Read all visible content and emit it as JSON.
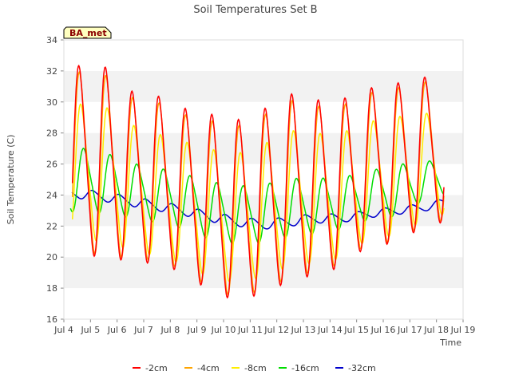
{
  "chart_data": {
    "type": "line",
    "title": "Soil Temperatures Set B",
    "xlabel": "Time",
    "ylabel": "Soil Temperature (C)",
    "badge": "BA_met",
    "xlim": [
      "Jul 4",
      "Jul 19"
    ],
    "ylim": [
      16,
      34
    ],
    "x_ticks": [
      "Jul 4",
      "Jul 5",
      "Jul 6",
      "Jul 7",
      "Jul 8",
      "Jul 9",
      "Jul 10",
      "Jul 11",
      "Jul 12",
      "Jul 13",
      "Jul 14",
      "Jul 15",
      "Jul 16",
      "Jul 17",
      "Jul 18",
      "Jul 19"
    ],
    "y_ticks": [
      16,
      18,
      20,
      22,
      24,
      26,
      28,
      30,
      32,
      34
    ],
    "grid": "horizontal bands",
    "legend_position": "bottom",
    "series": [
      {
        "name": "-2cm",
        "color": "#ff0000",
        "mean": [
          26.2,
          26.2,
          25.2,
          25.0,
          24.3,
          23.5,
          23.0,
          23.6,
          24.5,
          24.5,
          24.8,
          25.9,
          26.0,
          26.8,
          27.0
        ],
        "amp": [
          5.9,
          5.9,
          5.3,
          5.2,
          5.1,
          5.5,
          5.6,
          5.7,
          5.8,
          5.4,
          5.2,
          4.8,
          5.0,
          4.6,
          4.5
        ],
        "phase": 0.6,
        "start": 4.32,
        "end": 18.28
      },
      {
        "name": "-4cm",
        "color": "#ffa500",
        "mean": [
          26.1,
          26.0,
          25.1,
          24.9,
          24.2,
          23.4,
          22.9,
          23.5,
          24.4,
          24.4,
          24.7,
          25.8,
          25.9,
          26.7,
          26.9
        ],
        "amp": [
          5.6,
          5.6,
          5.0,
          4.9,
          4.8,
          5.2,
          5.3,
          5.4,
          5.5,
          5.1,
          4.9,
          4.6,
          4.8,
          4.4,
          4.3
        ],
        "phase": 0.62,
        "start": 4.32,
        "end": 18.28
      },
      {
        "name": "-8cm",
        "color": "#ffee00",
        "mean": [
          25.5,
          25.4,
          24.5,
          24.0,
          23.5,
          22.8,
          22.5,
          23.0,
          23.8,
          23.8,
          24.0,
          25.0,
          25.2,
          25.8,
          26.2
        ],
        "amp": [
          4.2,
          4.2,
          3.9,
          3.8,
          3.8,
          4.0,
          4.0,
          4.1,
          4.2,
          4.0,
          3.9,
          3.6,
          3.7,
          3.3,
          3.2
        ],
        "phase": 0.67,
        "start": 4.32,
        "end": 18.28
      },
      {
        "name": "-16cm",
        "color": "#00dd00",
        "mean": [
          25.0,
          24.8,
          24.3,
          24.0,
          23.6,
          23.0,
          22.7,
          22.8,
          23.2,
          23.3,
          23.5,
          24.0,
          24.3,
          24.9,
          25.2
        ],
        "amp": [
          2.0,
          1.9,
          1.7,
          1.7,
          1.7,
          1.8,
          1.8,
          1.8,
          1.8,
          1.7,
          1.6,
          1.5,
          1.6,
          1.2,
          1.1
        ],
        "phase": 0.78,
        "start": 4.25,
        "end": 18.28
      },
      {
        "name": "-32cm",
        "color": "#0000cc",
        "mean": [
          24.1,
          23.9,
          23.6,
          23.3,
          23.0,
          22.6,
          22.3,
          22.1,
          22.3,
          22.5,
          22.5,
          22.8,
          23.0,
          23.2,
          23.6
        ],
        "amp": [
          0.3,
          0.3,
          0.3,
          0.3,
          0.3,
          0.3,
          0.3,
          0.3,
          0.3,
          0.3,
          0.25,
          0.25,
          0.25,
          0.25,
          0.25
        ],
        "phase": 0.1,
        "start": 4.3,
        "end": 18.28
      }
    ]
  }
}
